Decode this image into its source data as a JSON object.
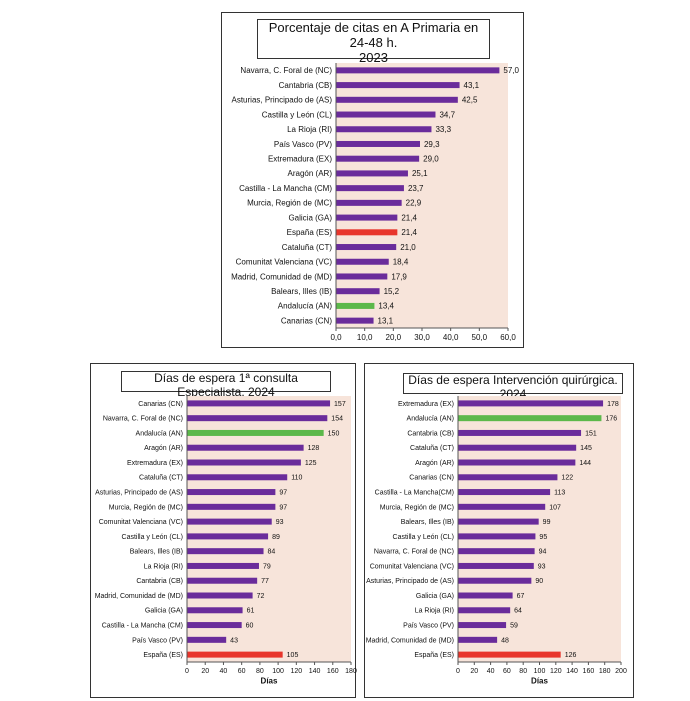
{
  "chart_data": [
    {
      "type": "bar",
      "orientation": "horizontal",
      "title": "Porcentaje de citas en A Primaria en 24-48 h. 2023",
      "title_lines": [
        "Porcentaje de citas en A Primaria en 24-48 h.",
        "2023"
      ],
      "categories": [
        "Navarra, C. Foral de (NC)",
        "Cantabria (CB)",
        "Asturias, Principado de (AS)",
        "Castilla y León (CL)",
        "La Rioja (RI)",
        "País Vasco (PV)",
        "Extremadura (EX)",
        "Aragón (AR)",
        "Castilla - La Mancha (CM)",
        "Murcia, Región de (MC)",
        "Galicia (GA)",
        "España (ES)",
        "Cataluña (CT)",
        "Comunitat Valenciana (VC)",
        "Madrid, Comunidad de (MD)",
        "Balears, Illes (IB)",
        "Andalucía (AN)",
        "Canarias (CN)"
      ],
      "values": [
        57.0,
        43.1,
        42.5,
        34.7,
        33.3,
        29.3,
        29.0,
        25.1,
        23.7,
        22.9,
        21.4,
        21.4,
        21.0,
        18.4,
        17.9,
        15.2,
        13.4,
        13.1
      ],
      "value_labels": [
        "57,0",
        "43,1",
        "42,5",
        "34,7",
        "33,3",
        "29,3",
        "29,0",
        "25,1",
        "23,7",
        "22,9",
        "21,4",
        "21,4",
        "21,0",
        "18,4",
        "17,9",
        "15,2",
        "13,4",
        "13,1"
      ],
      "highlight": {
        "España (ES)": "#e8352b",
        "Andalucía (AN)": "#5cb84a"
      },
      "xlim": [
        0,
        60
      ],
      "xticks": [
        "0,0",
        "10,0",
        "20,0",
        "30,0",
        "40,0",
        "50,0",
        "60,0"
      ],
      "xlabel": "",
      "ylabel": "",
      "grid": false
    },
    {
      "type": "bar",
      "orientation": "horizontal",
      "title": "Días de espera 1ª consulta Especialista. 2024",
      "title_lines": [
        "Días de espera 1ª consulta Especialista. 2024"
      ],
      "categories": [
        "Canarias (CN)",
        "Navarra, C. Foral de (NC)",
        "Andalucía (AN)",
        "Aragón (AR)",
        "Extremadura (EX)",
        "Cataluña (CT)",
        "Asturias, Principado de (AS)",
        "Murcia, Región de (MC)",
        "Comunitat Valenciana (VC)",
        "Castilla y León (CL)",
        "Balears, Illes (IB)",
        "La Rioja (RI)",
        "Cantabria (CB)",
        "Madrid, Comunidad de (MD)",
        "Galicia (GA)",
        "Castilla - La Mancha (CM)",
        "País Vasco (PV)",
        "España (ES)"
      ],
      "values": [
        157,
        154,
        150,
        128,
        125,
        110,
        97,
        97,
        93,
        89,
        84,
        79,
        77,
        72,
        61,
        60,
        43,
        105
      ],
      "value_labels": [
        "157",
        "154",
        "150",
        "128",
        "125",
        "110",
        "97",
        "97",
        "93",
        "89",
        "84",
        "79",
        "77",
        "72",
        "61",
        "60",
        "43",
        "105"
      ],
      "highlight": {
        "España (ES)": "#e8352b",
        "Andalucía (AN)": "#5cb84a"
      },
      "xlim": [
        0,
        180
      ],
      "xticks": [
        "0",
        "20",
        "40",
        "60",
        "80",
        "100",
        "120",
        "140",
        "160",
        "180"
      ],
      "xlabel": "Días",
      "ylabel": "",
      "grid": false
    },
    {
      "type": "bar",
      "orientation": "horizontal",
      "title": "Días de espera Intervención quirúrgica. 2024",
      "title_lines": [
        "Días de espera Intervención quirúrgica. 2024"
      ],
      "categories": [
        "Extremadura (EX)",
        "Andalucía (AN)",
        "Cantabria (CB)",
        "Cataluña (CT)",
        "Aragón (AR)",
        "Canarias (CN)",
        "Castilla - La Mancha(CM)",
        "Murcia, Región de (MC)",
        "Balears, Illes (IB)",
        "Castilla y León (CL)",
        "Navarra, C. Foral de (NC)",
        "Comunitat Valenciana (VC)",
        "Asturias, Principado de (AS)",
        "Galicia (GA)",
        "La Rioja (RI)",
        "País Vasco (PV)",
        "Madrid, Comunidad de (MD)",
        "España (ES)"
      ],
      "values": [
        178,
        176,
        151,
        145,
        144,
        122,
        113,
        107,
        99,
        95,
        94,
        93,
        90,
        67,
        64,
        59,
        48,
        126
      ],
      "value_labels": [
        "178",
        "176",
        "151",
        "145",
        "144",
        "122",
        "113",
        "107",
        "99",
        "95",
        "94",
        "93",
        "90",
        "67",
        "64",
        "59",
        "48",
        "126"
      ],
      "highlight": {
        "España (ES)": "#e8352b",
        "Andalucía (AN)": "#5cb84a"
      },
      "xlim": [
        0,
        200
      ],
      "xticks": [
        "0",
        "20",
        "40",
        "60",
        "80",
        "100",
        "120",
        "140",
        "160",
        "180",
        "200"
      ],
      "xlabel": "Días",
      "ylabel": "",
      "grid": false
    }
  ],
  "colors": {
    "bar": "#6a2c9b",
    "plot_background": "#f7e4da",
    "highlight_spain": "#e8352b",
    "highlight_andalucia": "#5cb84a"
  }
}
